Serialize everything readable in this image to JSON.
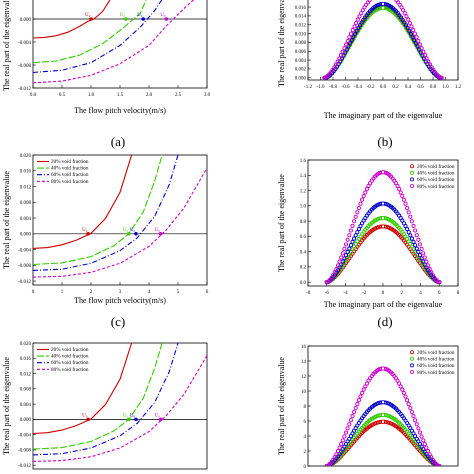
{
  "captions": [
    "(a)",
    "(b)",
    "(c)",
    "(d)"
  ],
  "chart_data": [
    {
      "id": "top-left",
      "type": "line",
      "xlabel": "The flow pitch velocity(m/s)",
      "ylabel": "The real part of the eigenvalue",
      "xlim": [
        0,
        3.0
      ],
      "ylim": [
        -0.012,
        0.004
      ],
      "xticks": [
        "0.0",
        "0.5",
        "1.0",
        "1.5",
        "2.0",
        "2.5",
        "3.0"
      ],
      "yticks": [
        "-0.012",
        "-0.008",
        "-0.004",
        "0.000",
        "0.004"
      ],
      "legend": false,
      "series": [
        {
          "name": "20% void fraction",
          "color": "#cc0000",
          "dash": "",
          "x": [
            0,
            0.2,
            0.4,
            0.6,
            0.8,
            0.95,
            1.05,
            1.2,
            1.4
          ],
          "y": [
            -0.0033,
            -0.0032,
            -0.0029,
            -0.0023,
            -0.0013,
            -0.0004,
            0.0,
            0.0013,
            0.0045
          ]
        },
        {
          "name": "40% void fraction",
          "color": "#33cc00",
          "dash": "7,2",
          "x": [
            0,
            0.4,
            0.8,
            1.2,
            1.5,
            1.7,
            1.85,
            2.0
          ],
          "y": [
            -0.0076,
            -0.0073,
            -0.0063,
            -0.0043,
            -0.002,
            -0.0003,
            0.001,
            0.0045
          ]
        },
        {
          "name": "60% void fraction",
          "color": "#0000cc",
          "dash": "5,2,1,2",
          "x": [
            0,
            0.5,
            1.0,
            1.5,
            1.85,
            2.1,
            2.3
          ],
          "y": [
            -0.0093,
            -0.0089,
            -0.0076,
            -0.0046,
            -0.0014,
            0.0015,
            0.0045
          ]
        },
        {
          "name": "80% void fraction",
          "color": "#cc00cc",
          "dash": "3,2",
          "x": [
            0,
            0.5,
            1.0,
            1.5,
            2.0,
            2.3,
            2.6,
            2.9
          ],
          "y": [
            -0.0111,
            -0.0108,
            -0.0098,
            -0.0078,
            -0.0046,
            -0.0012,
            0.0018,
            0.0045
          ]
        }
      ],
      "markers": [
        {
          "label": "U₀",
          "x": 1.0,
          "y": 0.0,
          "color": "#cc0000"
        },
        {
          "label": "U₀",
          "x": 1.6,
          "y": 0.0,
          "color": "#33cc00"
        },
        {
          "label": "U₀",
          "x": 1.9,
          "y": 0.0,
          "color": "#0000cc"
        },
        {
          "label": "U₀",
          "x": 2.3,
          "y": 0.0,
          "color": "#cc00cc"
        }
      ]
    },
    {
      "id": "top-right",
      "type": "scatter",
      "xlabel": "The imaginary part of the eigenvalue",
      "ylabel": "The real part of the eigenvalue",
      "xlim": [
        -1.2,
        1.2
      ],
      "ylim": [
        -0.0005,
        0.0185
      ],
      "xticks": [
        "-1.2",
        "-1.0",
        "-0.8",
        "-0.6",
        "-0.4",
        "-0.2",
        "0.0",
        "0.2",
        "0.4",
        "0.6",
        "0.8",
        "1.0",
        "1.2"
      ],
      "yticks": [
        "0.000",
        "0.002",
        "0.004",
        "0.006",
        "0.008",
        "0.010",
        "0.012",
        "0.014",
        "0.016"
      ],
      "legend": false,
      "series": [
        {
          "name": "20% void fraction",
          "color": "#cc0000",
          "halfwidth": 0.92,
          "peak": 0.0162
        },
        {
          "name": "40% void fraction",
          "color": "#33cc00",
          "halfwidth": 0.92,
          "peak": 0.0158
        },
        {
          "name": "60% void fraction",
          "color": "#0000cc",
          "halfwidth": 0.92,
          "peak": 0.0167
        },
        {
          "name": "80% void fraction",
          "color": "#cc00cc",
          "halfwidth": 0.94,
          "peak": 0.0195
        }
      ]
    },
    {
      "id": "middle-left",
      "type": "line",
      "xlabel": "The flow pitch velocity(m/s)",
      "ylabel": "The real part of the eigenvalue",
      "xlim": [
        0,
        6
      ],
      "ylim": [
        -0.013,
        0.02
      ],
      "xticks": [
        "0",
        "1",
        "2",
        "3",
        "4",
        "5",
        "6"
      ],
      "yticks": [
        "-0.012",
        "-0.008",
        "-0.004",
        "0.000",
        "0.004",
        "0.008",
        "0.012",
        "0.016",
        "0.020"
      ],
      "legend": true,
      "series": [
        {
          "name": "20% void fraction",
          "color": "#cc0000",
          "dash": "",
          "x": [
            0,
            0.5,
            1.0,
            1.5,
            2.0,
            2.5,
            3.0,
            3.4
          ],
          "y": [
            -0.0037,
            -0.0035,
            -0.0028,
            -0.0016,
            0.0001,
            0.0039,
            0.0105,
            0.02
          ]
        },
        {
          "name": "40% void fraction",
          "color": "#33cc00",
          "dash": "7,2",
          "x": [
            0,
            1.0,
            2.0,
            2.8,
            3.3,
            3.8,
            4.2,
            4.45
          ],
          "y": [
            -0.0078,
            -0.0074,
            -0.0058,
            -0.003,
            0.0,
            0.0055,
            0.0135,
            0.02
          ]
        },
        {
          "name": "60% void fraction",
          "color": "#0000cc",
          "dash": "5,2,1,2",
          "x": [
            0,
            1.0,
            2.0,
            3.0,
            3.6,
            4.2,
            4.7,
            5.0
          ],
          "y": [
            -0.0093,
            -0.009,
            -0.0075,
            -0.0043,
            -0.001,
            0.0045,
            0.0125,
            0.02
          ]
        },
        {
          "name": "80% void fraction",
          "color": "#cc00cc",
          "dash": "3,2",
          "x": [
            0,
            1.0,
            2.0,
            3.0,
            4.0,
            4.6,
            5.2,
            6.0
          ],
          "y": [
            -0.011,
            -0.0108,
            -0.0098,
            -0.0075,
            -0.0032,
            0.001,
            0.0065,
            0.0167
          ]
        }
      ],
      "markers": [
        {
          "label": "U₀",
          "x": 1.9,
          "y": 0.0,
          "color": "#cc0000"
        },
        {
          "label": "U₀",
          "x": 3.3,
          "y": 0.0,
          "color": "#33cc00"
        },
        {
          "label": "U₀",
          "x": 3.55,
          "y": 0.0,
          "color": "#0000cc"
        },
        {
          "label": "U₀",
          "x": 4.4,
          "y": 0.0,
          "color": "#cc00cc"
        }
      ]
    },
    {
      "id": "middle-right",
      "type": "scatter",
      "xlabel": "The imaginary part of the eigenvalue",
      "ylabel": "The real part of the eigenvalue",
      "xlim": [
        -8,
        8
      ],
      "ylim": [
        -0.05,
        1.6
      ],
      "xticks": [
        "-8",
        "-6",
        "-4",
        "-2",
        "0",
        "2",
        "4",
        "6",
        "8"
      ],
      "yticks": [
        "0.0",
        "0.2",
        "0.4",
        "0.6",
        "0.8",
        "1.0",
        "1.2",
        "1.4",
        "1.6"
      ],
      "legend": true,
      "series": [
        {
          "name": "20% void fraction",
          "color": "#cc0000",
          "halfwidth": 6.0,
          "peak": 0.73
        },
        {
          "name": "40% void fraction",
          "color": "#33cc00",
          "halfwidth": 6.0,
          "peak": 0.84
        },
        {
          "name": "60% void fraction",
          "color": "#0000cc",
          "halfwidth": 6.0,
          "peak": 1.03
        },
        {
          "name": "80% void fraction",
          "color": "#cc00cc",
          "halfwidth": 6.0,
          "peak": 1.44
        }
      ]
    },
    {
      "id": "bottom-left",
      "type": "line",
      "xlabel": "",
      "ylabel": "The real part of the eigenvalue",
      "xlim": [
        0,
        6
      ],
      "ylim": [
        -0.013,
        0.02
      ],
      "xticks": [],
      "yticks": [
        "-0.012",
        "-0.008",
        "-0.004",
        "0.000",
        "0.004",
        "0.008",
        "0.012",
        "0.016",
        "0.020"
      ],
      "legend": true,
      "series": [
        {
          "name": "20% void fraction",
          "color": "#cc0000",
          "dash": "",
          "x": [
            0,
            0.5,
            1.0,
            1.5,
            2.0,
            2.5,
            3.0,
            3.4
          ],
          "y": [
            -0.0037,
            -0.0035,
            -0.0028,
            -0.0016,
            0.0001,
            0.0039,
            0.0105,
            0.02
          ]
        },
        {
          "name": "40% void fraction",
          "color": "#33cc00",
          "dash": "7,2",
          "x": [
            0,
            1.0,
            2.0,
            2.8,
            3.3,
            3.8,
            4.2,
            4.45
          ],
          "y": [
            -0.0078,
            -0.0074,
            -0.0058,
            -0.003,
            0.0,
            0.0055,
            0.0135,
            0.02
          ]
        },
        {
          "name": "60% void fraction",
          "color": "#0000cc",
          "dash": "5,2,1,2",
          "x": [
            0,
            1.0,
            2.0,
            3.0,
            3.6,
            4.2,
            4.7,
            5.0
          ],
          "y": [
            -0.0093,
            -0.009,
            -0.0075,
            -0.0043,
            -0.001,
            0.0045,
            0.0125,
            0.02
          ]
        },
        {
          "name": "80% void fraction",
          "color": "#cc00cc",
          "dash": "3,2",
          "x": [
            0,
            1.0,
            2.0,
            3.0,
            4.0,
            4.6,
            5.2,
            6.0
          ],
          "y": [
            -0.011,
            -0.0108,
            -0.0098,
            -0.0075,
            -0.0032,
            0.001,
            0.0065,
            0.0167
          ]
        }
      ],
      "markers": [
        {
          "label": "U₀",
          "x": 1.9,
          "y": 0.0,
          "color": "#cc0000"
        },
        {
          "label": "U₀",
          "x": 3.3,
          "y": 0.0,
          "color": "#33cc00"
        },
        {
          "label": "U₀",
          "x": 3.55,
          "y": 0.0,
          "color": "#0000cc"
        },
        {
          "label": "U₀",
          "x": 4.4,
          "y": 0.0,
          "color": "#cc00cc"
        }
      ]
    },
    {
      "id": "bottom-right",
      "type": "scatter",
      "xlabel": "",
      "ylabel": "The real part of the eigenvalue",
      "xlim": [
        -8,
        8
      ],
      "ylim": [
        0,
        16
      ],
      "xticks": [],
      "yticks": [
        "0",
        "2",
        "4",
        "6",
        "8",
        "10",
        "12",
        "14",
        "16"
      ],
      "legend": true,
      "series": [
        {
          "name": "20% void fraction",
          "color": "#cc0000",
          "halfwidth": 6.0,
          "peak": 5.9
        },
        {
          "name": "40% void fraction",
          "color": "#33cc00",
          "halfwidth": 6.0,
          "peak": 6.8
        },
        {
          "name": "60% void fraction",
          "color": "#0000cc",
          "halfwidth": 6.0,
          "peak": 8.5
        },
        {
          "name": "80% void fraction",
          "color": "#cc00cc",
          "halfwidth": 6.0,
          "peak": 13.0
        }
      ]
    }
  ]
}
